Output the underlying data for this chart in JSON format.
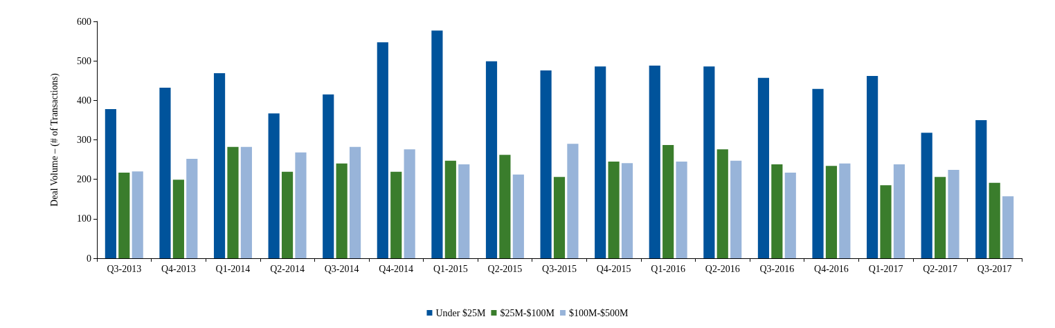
{
  "chart_data": {
    "type": "bar",
    "ylabel": "Deal Volume – (# of Transactions)",
    "categories": [
      "Q3-2013",
      "Q4-2013",
      "Q1-2014",
      "Q2-2014",
      "Q3-2014",
      "Q4-2014",
      "Q1-2015",
      "Q2-2015",
      "Q3-2015",
      "Q4-2015",
      "Q1-2016",
      "Q2-2016",
      "Q3-2016",
      "Q4-2016",
      "Q1-2017",
      "Q2-2017",
      "Q3-2017"
    ],
    "series": [
      {
        "name": "Under $25M",
        "color": "#00539b",
        "values": [
          378,
          432,
          469,
          367,
          415,
          547,
          577,
          499,
          476,
          486,
          488,
          486,
          457,
          429,
          462,
          318,
          350
        ]
      },
      {
        "name": "$25M-$100M",
        "color": "#3a7d2c",
        "values": [
          217,
          199,
          282,
          219,
          240,
          219,
          247,
          262,
          206,
          245,
          287,
          276,
          238,
          234,
          185,
          206,
          191
        ]
      },
      {
        "name": "$100M-$500M",
        "color": "#98b4d9",
        "values": [
          220,
          252,
          282,
          268,
          282,
          276,
          238,
          212,
          290,
          241,
          245,
          247,
          217,
          240,
          238,
          224,
          157
        ]
      }
    ],
    "ylim": [
      0,
      600
    ],
    "yticks": [
      0,
      100,
      200,
      300,
      400,
      500,
      600
    ],
    "grid": false,
    "legend": "bottom"
  }
}
